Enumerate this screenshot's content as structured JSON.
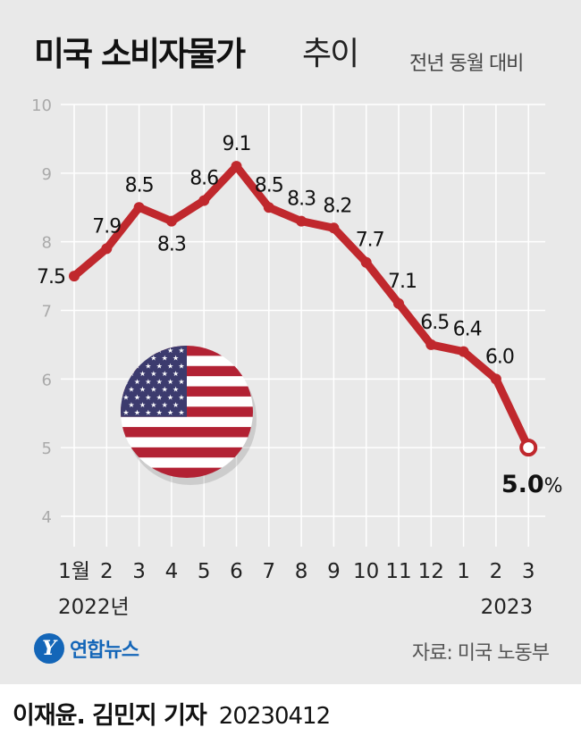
{
  "header": {
    "title_main": "미국 소비자물가",
    "title_sub": "추이",
    "subtitle": "전년 동월 대비"
  },
  "chart_data": {
    "type": "line",
    "categories": [
      "1월",
      "2",
      "3",
      "4",
      "5",
      "6",
      "7",
      "8",
      "9",
      "10",
      "11",
      "12",
      "1",
      "2",
      "3"
    ],
    "year_labels": [
      {
        "index": 0,
        "label": "2022년"
      },
      {
        "index": 13,
        "label": "2023"
      }
    ],
    "values": [
      7.5,
      7.9,
      8.5,
      8.3,
      8.6,
      9.1,
      8.5,
      8.3,
      8.2,
      7.7,
      7.1,
      6.5,
      6.4,
      6.0,
      5.0
    ],
    "labels": [
      "7.5",
      "7.9",
      "8.5",
      "8.3",
      "8.6",
      "9.1",
      "8.5",
      "8.3",
      "8.2",
      "7.7",
      "7.1",
      "6.5",
      "6.4",
      "6.0",
      "5.0"
    ],
    "last_label_unit": "%",
    "ylim": [
      4,
      10
    ],
    "yticks": [
      4,
      5,
      6,
      7,
      8,
      9,
      10
    ],
    "grid": true,
    "line_color": "#c0282d",
    "xlabel": "",
    "ylabel": ""
  },
  "decor": {
    "flag_icon": "us-flag-icon",
    "flag_colors": {
      "red": "#b22234",
      "white": "#ffffff",
      "blue": "#3c3b6e"
    }
  },
  "footer": {
    "logo_mark": "Y",
    "logo_text": "연합뉴스",
    "source": "자료: 미국 노동부",
    "credit": "이재윤. 김민지 기자",
    "date": "20230412"
  }
}
